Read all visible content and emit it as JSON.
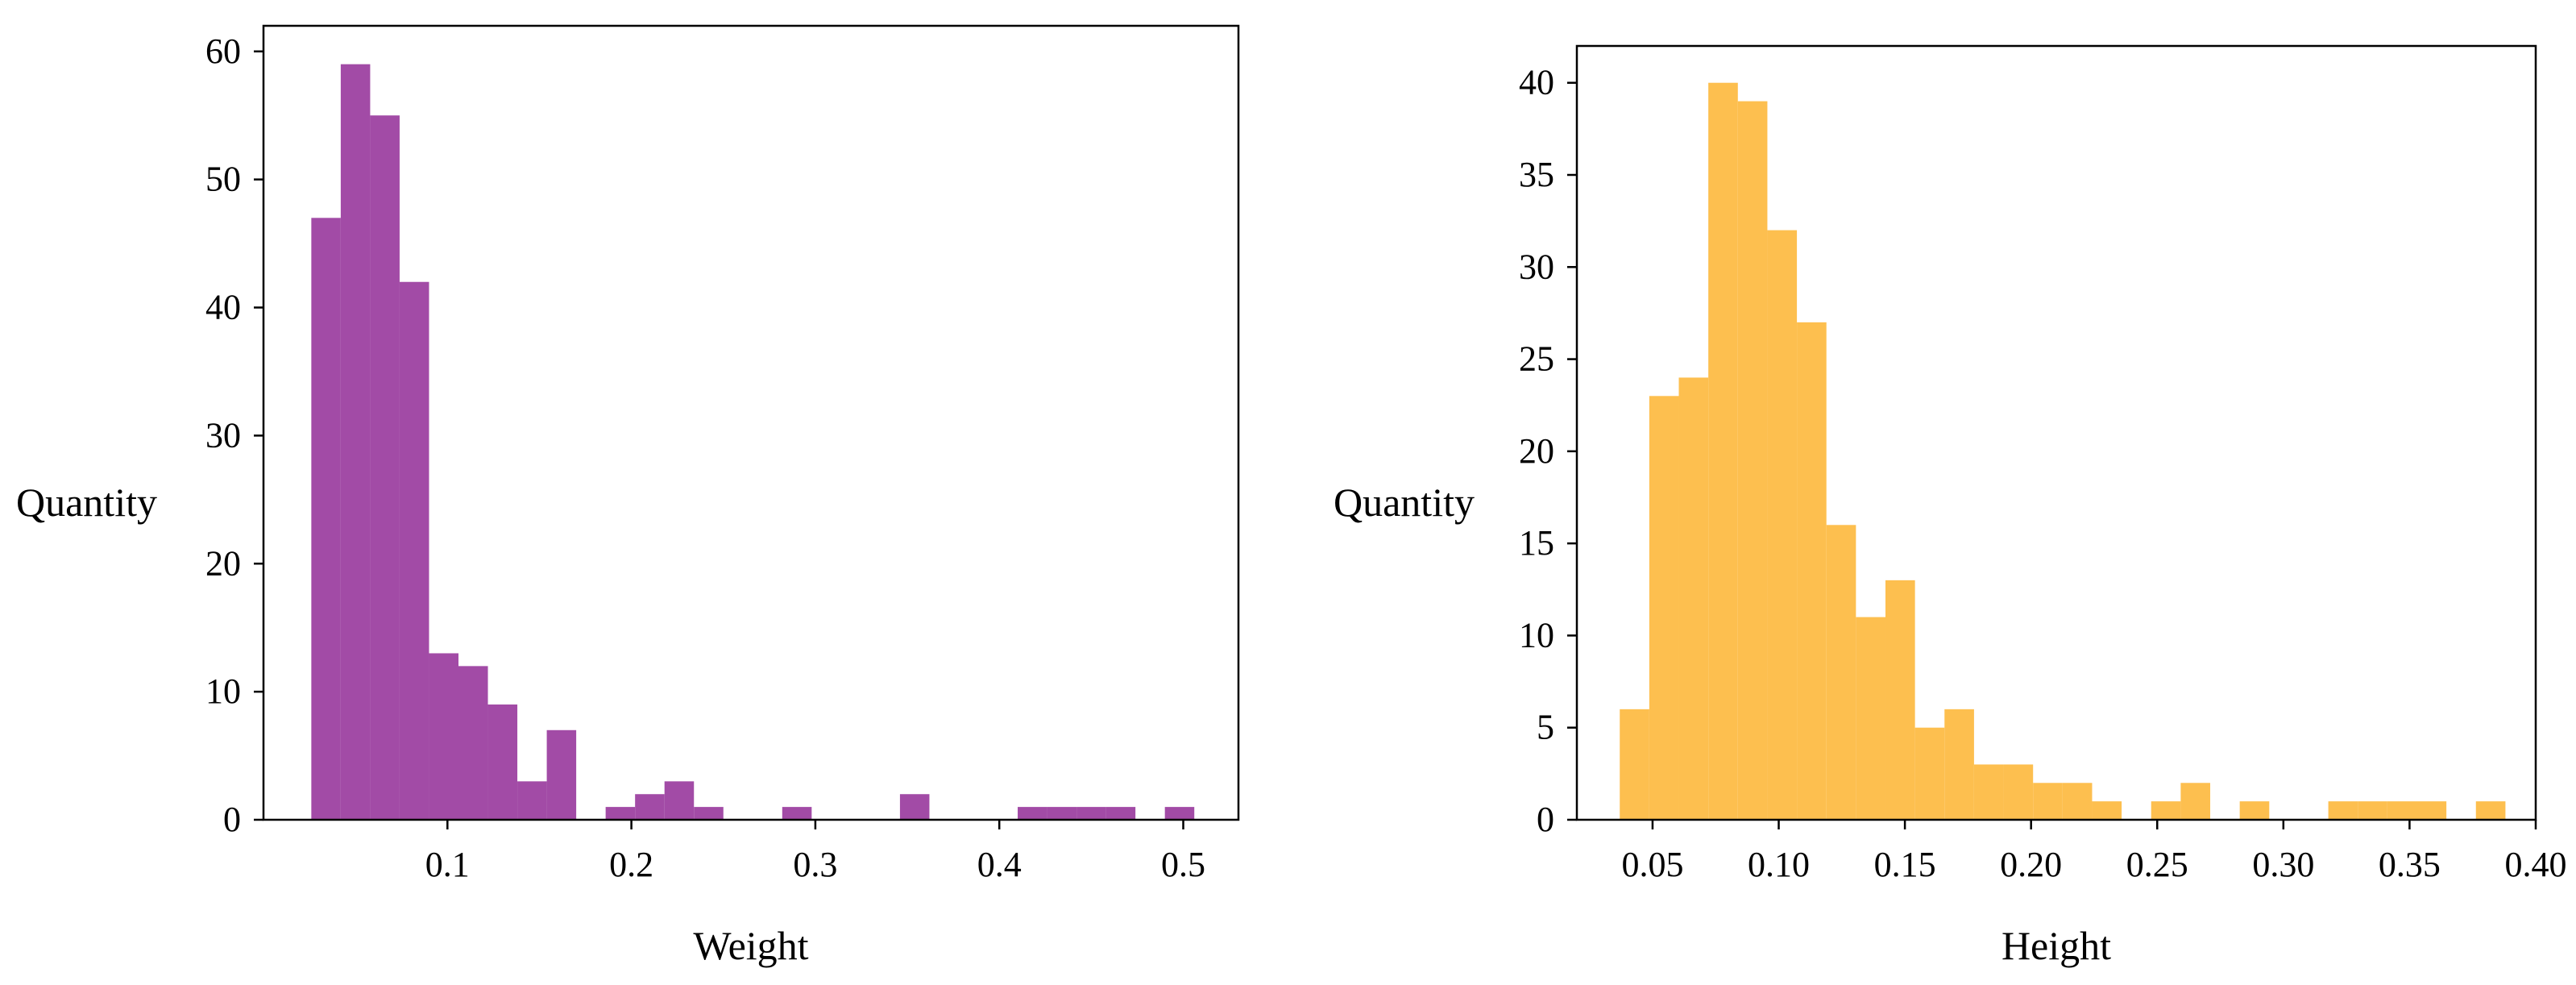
{
  "chart_data": [
    {
      "type": "bar",
      "title": "",
      "xlabel": "Weight",
      "ylabel": "Quantity",
      "color": "#A24BA6",
      "xlim": [
        0,
        0.53
      ],
      "ylim": [
        0,
        62
      ],
      "x_ticks": [
        0.1,
        0.2,
        0.3,
        0.4,
        0.5
      ],
      "x_tick_labels": [
        "0.1",
        "0.2",
        "0.3",
        "0.4",
        "0.5"
      ],
      "y_ticks": [
        0,
        10,
        20,
        30,
        40,
        50,
        60
      ],
      "y_tick_labels": [
        "0",
        "10",
        "20",
        "30",
        "40",
        "50",
        "60"
      ],
      "grid": false,
      "bins": [
        {
          "x0": 0.026,
          "x1": 0.042,
          "value": 47
        },
        {
          "x0": 0.042,
          "x1": 0.058,
          "value": 59
        },
        {
          "x0": 0.058,
          "x1": 0.074,
          "value": 55
        },
        {
          "x0": 0.074,
          "x1": 0.09,
          "value": 42
        },
        {
          "x0": 0.09,
          "x1": 0.106,
          "value": 13
        },
        {
          "x0": 0.106,
          "x1": 0.122,
          "value": 12
        },
        {
          "x0": 0.122,
          "x1": 0.138,
          "value": 9
        },
        {
          "x0": 0.138,
          "x1": 0.154,
          "value": 3
        },
        {
          "x0": 0.154,
          "x1": 0.17,
          "value": 7
        },
        {
          "x0": 0.186,
          "x1": 0.202,
          "value": 1
        },
        {
          "x0": 0.202,
          "x1": 0.218,
          "value": 2
        },
        {
          "x0": 0.218,
          "x1": 0.234,
          "value": 3
        },
        {
          "x0": 0.234,
          "x1": 0.25,
          "value": 1
        },
        {
          "x0": 0.282,
          "x1": 0.298,
          "value": 1
        },
        {
          "x0": 0.346,
          "x1": 0.362,
          "value": 2
        },
        {
          "x0": 0.41,
          "x1": 0.426,
          "value": 1
        },
        {
          "x0": 0.426,
          "x1": 0.442,
          "value": 1
        },
        {
          "x0": 0.442,
          "x1": 0.458,
          "value": 1
        },
        {
          "x0": 0.458,
          "x1": 0.474,
          "value": 1
        },
        {
          "x0": 0.49,
          "x1": 0.506,
          "value": 1
        }
      ]
    },
    {
      "type": "bar",
      "title": "",
      "xlabel": "Height",
      "ylabel": "Quantity",
      "color": "#FDBF4F",
      "xlim": [
        0.02,
        0.4
      ],
      "ylim": [
        0,
        42
      ],
      "x_ticks": [
        0.05,
        0.1,
        0.15,
        0.2,
        0.25,
        0.3,
        0.35,
        0.4
      ],
      "x_tick_labels": [
        "0.05",
        "0.10",
        "0.15",
        "0.20",
        "0.25",
        "0.30",
        "0.35",
        "0.40"
      ],
      "y_ticks": [
        0,
        5,
        10,
        15,
        20,
        25,
        30,
        35,
        40
      ],
      "y_tick_labels": [
        "0",
        "5",
        "10",
        "15",
        "20",
        "25",
        "30",
        "35",
        "40"
      ],
      "grid": false,
      "bins": [
        {
          "x0": 0.037,
          "x1": 0.0487,
          "value": 6
        },
        {
          "x0": 0.0487,
          "x1": 0.0604,
          "value": 23
        },
        {
          "x0": 0.0604,
          "x1": 0.0721,
          "value": 24
        },
        {
          "x0": 0.0721,
          "x1": 0.0838,
          "value": 40
        },
        {
          "x0": 0.0838,
          "x1": 0.0955,
          "value": 39
        },
        {
          "x0": 0.0955,
          "x1": 0.1072,
          "value": 32
        },
        {
          "x0": 0.1072,
          "x1": 0.1189,
          "value": 27
        },
        {
          "x0": 0.1189,
          "x1": 0.1306,
          "value": 16
        },
        {
          "x0": 0.1306,
          "x1": 0.1423,
          "value": 11
        },
        {
          "x0": 0.1423,
          "x1": 0.154,
          "value": 13
        },
        {
          "x0": 0.154,
          "x1": 0.1657,
          "value": 5
        },
        {
          "x0": 0.1657,
          "x1": 0.1774,
          "value": 6
        },
        {
          "x0": 0.1774,
          "x1": 0.1891,
          "value": 3
        },
        {
          "x0": 0.1891,
          "x1": 0.2008,
          "value": 3
        },
        {
          "x0": 0.2008,
          "x1": 0.2125,
          "value": 2
        },
        {
          "x0": 0.2125,
          "x1": 0.2242,
          "value": 2
        },
        {
          "x0": 0.2242,
          "x1": 0.2359,
          "value": 1
        },
        {
          "x0": 0.2476,
          "x1": 0.2593,
          "value": 1
        },
        {
          "x0": 0.2593,
          "x1": 0.271,
          "value": 2
        },
        {
          "x0": 0.2827,
          "x1": 0.2944,
          "value": 1
        },
        {
          "x0": 0.3178,
          "x1": 0.3295,
          "value": 1
        },
        {
          "x0": 0.3295,
          "x1": 0.3412,
          "value": 1
        },
        {
          "x0": 0.3412,
          "x1": 0.3529,
          "value": 1
        },
        {
          "x0": 0.3529,
          "x1": 0.3646,
          "value": 1
        },
        {
          "x0": 0.3763,
          "x1": 0.388,
          "value": 1
        }
      ]
    }
  ]
}
